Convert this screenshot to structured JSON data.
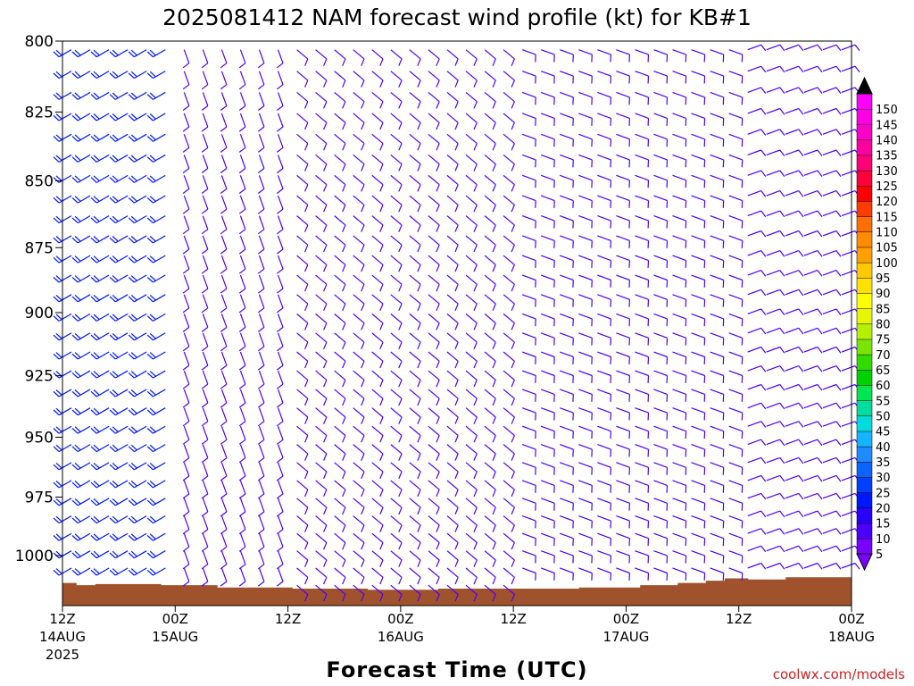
{
  "chart_data": {
    "type": "wind-barb time-height profile",
    "title": "2025081412 NAM forecast wind profile (kt) for KB#1",
    "xlabel": "Forecast Time (UTC)",
    "ylabel": "",
    "y_axis": {
      "unit": "hPa",
      "reversed": true,
      "range": [
        800,
        1022
      ],
      "ticks": [
        "800",
        "825",
        "850",
        "875",
        "900",
        "925",
        "950",
        "975",
        "1000"
      ]
    },
    "x_axis": {
      "range_hours": [
        0,
        84
      ],
      "ticks": [
        {
          "hour": 0,
          "line1": "12Z",
          "line2": "14AUG",
          "line3": "2025"
        },
        {
          "hour": 12,
          "line1": "00Z",
          "line2": "15AUG",
          "line3": ""
        },
        {
          "hour": 24,
          "line1": "12Z",
          "line2": "",
          "line3": ""
        },
        {
          "hour": 36,
          "line1": "00Z",
          "line2": "16AUG",
          "line3": ""
        },
        {
          "hour": 48,
          "line1": "12Z",
          "line2": "",
          "line3": ""
        },
        {
          "hour": 60,
          "line1": "00Z",
          "line2": "17AUG",
          "line3": ""
        },
        {
          "hour": 72,
          "line1": "12Z",
          "line2": "",
          "line3": ""
        },
        {
          "hour": 84,
          "line1": "00Z",
          "line2": "18AUG",
          "line3": ""
        }
      ]
    },
    "grid": false,
    "legend_position": "right",
    "colorbar": {
      "unit": "kt",
      "labels": [
        "5",
        "10",
        "15",
        "20",
        "25",
        "30",
        "35",
        "40",
        "45",
        "50",
        "55",
        "60",
        "65",
        "70",
        "75",
        "80",
        "85",
        "90",
        "95",
        "100",
        "105",
        "110",
        "115",
        "120",
        "125",
        "130",
        "135",
        "140",
        "145",
        "150"
      ],
      "colors": [
        "#7a00ff",
        "#4b00ff",
        "#2a00ff",
        "#0018ff",
        "#0040ff",
        "#0a64ff",
        "#1e8cff",
        "#14b4ff",
        "#00dcdc",
        "#00dca0",
        "#00e650",
        "#00d200",
        "#32dc00",
        "#78e600",
        "#b4f000",
        "#e6f500",
        "#ffff00",
        "#ffe100",
        "#ffc800",
        "#ffa000",
        "#ff8c00",
        "#ff6e00",
        "#ff3c00",
        "#ff0000",
        "#ff003c",
        "#ff0078",
        "#ff00a0",
        "#ff00c8",
        "#ff00e6",
        "#ff00ff"
      ]
    },
    "series": [
      {
        "time_hours": [
          0,
          2,
          4,
          6,
          8,
          10
        ],
        "pressure_levels_hPa": [
          803,
          1010
        ],
        "direction_from_deg": 240,
        "speed_kt": 22
      },
      {
        "time_hours": [
          12,
          14,
          16,
          18,
          20,
          22
        ],
        "pressure_levels_hPa": [
          803,
          1012
        ],
        "direction_from_deg": 160,
        "speed_kt": 8
      },
      {
        "time_hours": [
          24,
          26,
          28,
          30,
          32,
          34,
          36,
          38,
          40,
          42,
          44,
          46
        ],
        "pressure_levels_hPa": [
          803,
          1013
        ],
        "direction_from_deg": 130,
        "speed_kt": 8
      },
      {
        "time_hours": [
          48,
          50,
          52,
          54,
          56,
          58,
          60,
          62,
          64,
          66,
          68,
          70
        ],
        "pressure_levels_hPa": [
          803,
          1012
        ],
        "direction_from_deg": 110,
        "speed_kt": 10
      },
      {
        "time_hours": [
          72,
          74,
          76,
          78,
          80,
          82,
          84
        ],
        "pressure_levels_hPa": [
          803,
          1009
        ],
        "direction_from_deg": 70,
        "speed_kt": 12
      }
    ],
    "terrain": {
      "color": "#a0522d",
      "surface_pressure_hPa": [
        [
          0,
          1012
        ],
        [
          1.5,
          1013
        ],
        [
          3.5,
          1012.5
        ],
        [
          10.5,
          1013
        ],
        [
          16.5,
          1014
        ],
        [
          24.5,
          1014.5
        ],
        [
          32.5,
          1015
        ],
        [
          40,
          1014.5
        ],
        [
          48,
          1014.5
        ],
        [
          55,
          1014
        ],
        [
          61.5,
          1013
        ],
        [
          65.5,
          1012
        ],
        [
          68.5,
          1011
        ],
        [
          70.5,
          1010
        ],
        [
          73,
          1010.5
        ],
        [
          77,
          1009.5
        ],
        [
          84,
          1009.5
        ]
      ]
    },
    "credit": "coolwx.com/models"
  }
}
